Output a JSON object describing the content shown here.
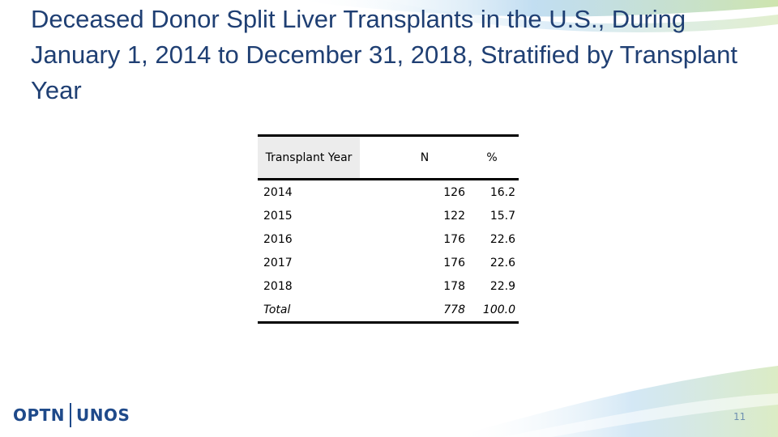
{
  "slide": {
    "title": "Deceased Donor Split Liver Transplants in the U.S., During January 1, 2014 to December 31, 2018, Stratified by Transplant Year",
    "page_number": "11",
    "logo": {
      "left": "OPTN",
      "right": "UNOS"
    },
    "accent_colors": {
      "title": "#1f3f73",
      "swoosh_blue": "#7fb8e0",
      "swoosh_green": "#b5d88a",
      "logo": "#1f4a8a"
    }
  },
  "table": {
    "headers": {
      "year": "Transplant Year",
      "n": "N",
      "pct": "%"
    },
    "rows": [
      {
        "year": "2014",
        "n": "126",
        "pct": "16.2"
      },
      {
        "year": "2015",
        "n": "122",
        "pct": "15.7"
      },
      {
        "year": "2016",
        "n": "176",
        "pct": "22.6"
      },
      {
        "year": "2017",
        "n": "176",
        "pct": "22.6"
      },
      {
        "year": "2018",
        "n": "178",
        "pct": "22.9"
      },
      {
        "year": "Total",
        "n": "778",
        "pct": "100.0"
      }
    ]
  }
}
